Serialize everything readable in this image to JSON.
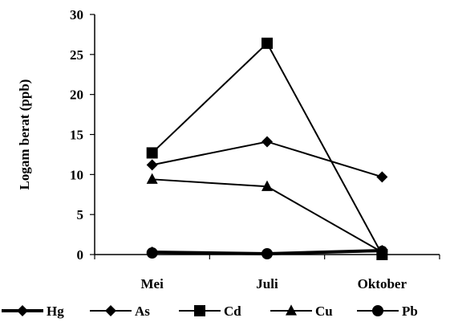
{
  "chart_data": {
    "type": "line",
    "title": "",
    "xlabel": "",
    "ylabel": "Logam berat (ppb)",
    "categories": [
      "Mei",
      "Juli",
      "Oktober"
    ],
    "ylim": [
      0,
      30
    ],
    "yticks": [
      0,
      5,
      10,
      15,
      20,
      25,
      30
    ],
    "grid": false,
    "legend_position": "bottom",
    "series": [
      {
        "name": "Hg",
        "marker": "diamond",
        "values": [
          0.3,
          0.1,
          0.5
        ],
        "color": "#000000",
        "line_width": "thick"
      },
      {
        "name": "As",
        "marker": "diamond",
        "values": [
          11.2,
          14.1,
          9.7
        ],
        "color": "#000000",
        "line_width": "normal"
      },
      {
        "name": "Cd",
        "marker": "square",
        "values": [
          12.7,
          26.4,
          0.0
        ],
        "color": "#000000",
        "line_width": "normal"
      },
      {
        "name": "Cu",
        "marker": "triangle",
        "values": [
          9.4,
          8.5,
          0.3
        ],
        "color": "#000000",
        "line_width": "normal"
      },
      {
        "name": "Pb",
        "marker": "circle",
        "values": [
          0.2,
          0.1,
          0.4
        ],
        "color": "#000000",
        "line_width": "normal"
      }
    ]
  }
}
